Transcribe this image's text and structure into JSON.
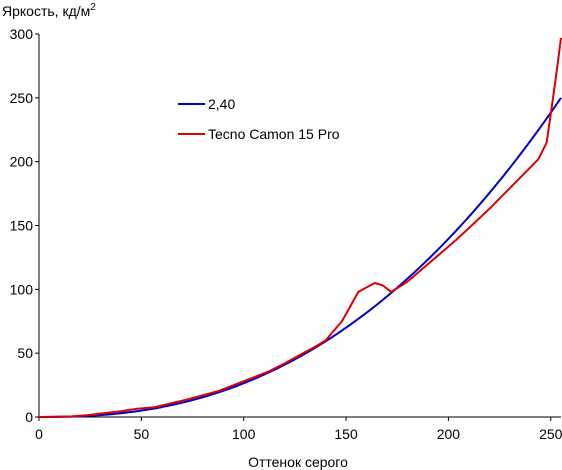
{
  "chart_data": {
    "type": "line",
    "ylabel": "Яркость, кд/м",
    "ylabel_sup": "2",
    "xlabel": "Оттенок серого",
    "xlim": [
      0,
      255
    ],
    "ylim": [
      0,
      300
    ],
    "x_ticks": [
      0,
      50,
      100,
      150,
      200,
      250
    ],
    "x_tick_labels": [
      "0",
      "50",
      "100",
      "150",
      "200",
      "250"
    ],
    "y_ticks": [
      0,
      50,
      100,
      150,
      200,
      250,
      300
    ],
    "y_tick_labels": [
      "0",
      "50",
      "100",
      "150",
      "200",
      "250",
      "300"
    ],
    "grid": false,
    "legend_position": "upper-left-inside",
    "series": [
      {
        "name": "2,40",
        "color": "#0000cc",
        "type": "gamma",
        "gamma": 2.4,
        "max_value": 250
      },
      {
        "name": "Tecno Camon 15 Pro",
        "color": "#dd0000",
        "x": [
          0,
          16,
          24,
          32,
          40,
          48,
          56,
          64,
          72,
          80,
          88,
          96,
          104,
          112,
          120,
          128,
          136,
          140,
          148,
          156,
          164,
          168,
          172,
          180,
          188,
          196,
          204,
          212,
          220,
          228,
          236,
          244,
          248,
          252,
          255
        ],
        "y": [
          0,
          0.5,
          1.5,
          3,
          4.5,
          6.5,
          7.5,
          10.5,
          13.5,
          17,
          20.5,
          25.5,
          30.5,
          35.5,
          42,
          49,
          56,
          60,
          75,
          98,
          105,
          103,
          98,
          106,
          117,
          128,
          139,
          151,
          163,
          176,
          189,
          202,
          215,
          260,
          297
        ]
      }
    ]
  }
}
